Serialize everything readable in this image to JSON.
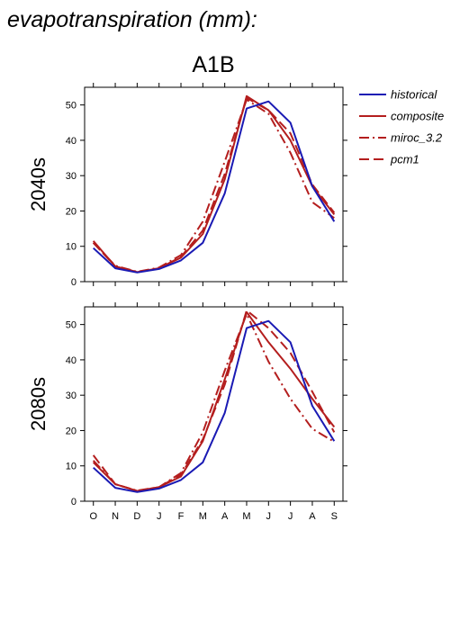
{
  "title": "evapotranspiration (mm):",
  "subtitle": "A1B",
  "colors": {
    "historical": "#1a1ab4",
    "composite": "#b41e1e",
    "miroc_3.2": "#b41e1e",
    "pcm1": "#b41e1e"
  },
  "legend": [
    {
      "name": "historical",
      "style": "solid",
      "color": "#1a1ab4"
    },
    {
      "name": "composite",
      "style": "solid",
      "color": "#b41e1e"
    },
    {
      "name": "miroc_3.2",
      "style": "dashdot",
      "color": "#b41e1e"
    },
    {
      "name": "pcm1",
      "style": "dash",
      "color": "#b41e1e"
    }
  ],
  "chart_data": [
    {
      "type": "line",
      "panel_label": "2040s",
      "categories": [
        "O",
        "N",
        "D",
        "J",
        "F",
        "M",
        "A",
        "M",
        "J",
        "J",
        "A",
        "S"
      ],
      "ylim": [
        0,
        55
      ],
      "yticks": [
        0,
        10,
        20,
        30,
        40,
        50
      ],
      "series": [
        {
          "name": "historical",
          "style": "solid",
          "values": [
            9.5,
            3.8,
            2.6,
            3.6,
            6.0,
            11.0,
            25.0,
            49.0,
            51.0,
            45.0,
            27.0,
            17.0
          ]
        },
        {
          "name": "composite",
          "style": "solid",
          "values": [
            11.5,
            4.3,
            2.7,
            3.8,
            6.8,
            13.5,
            29.0,
            52.5,
            48.5,
            40.0,
            27.0,
            19.0
          ]
        },
        {
          "name": "miroc_3.2",
          "style": "dashdot",
          "values": [
            11.0,
            4.5,
            2.8,
            4.0,
            7.5,
            17.0,
            34.0,
            51.5,
            47.5,
            36.5,
            22.5,
            18.0
          ]
        },
        {
          "name": "pcm1",
          "style": "dash",
          "values": [
            11.0,
            4.3,
            2.7,
            3.8,
            7.0,
            14.5,
            30.5,
            52.0,
            48.5,
            42.0,
            27.5,
            19.5
          ]
        }
      ]
    },
    {
      "type": "line",
      "panel_label": "2080s",
      "categories": [
        "O",
        "N",
        "D",
        "J",
        "F",
        "M",
        "A",
        "M",
        "J",
        "J",
        "A",
        "S"
      ],
      "ylim": [
        0,
        55
      ],
      "yticks": [
        0,
        10,
        20,
        30,
        40,
        50
      ],
      "series": [
        {
          "name": "historical",
          "style": "solid",
          "values": [
            9.5,
            3.8,
            2.6,
            3.6,
            6.0,
            11.0,
            25.0,
            49.0,
            51.0,
            45.0,
            27.0,
            17.0
          ]
        },
        {
          "name": "composite",
          "style": "solid",
          "values": [
            11.0,
            4.8,
            2.9,
            4.0,
            7.0,
            17.0,
            34.5,
            53.5,
            45.0,
            37.5,
            29.0,
            21.0
          ]
        },
        {
          "name": "miroc_3.2",
          "style": "dashdot",
          "values": [
            11.5,
            4.8,
            3.0,
            4.0,
            8.0,
            19.5,
            37.0,
            53.0,
            39.5,
            29.0,
            20.5,
            16.8
          ]
        },
        {
          "name": "pcm1",
          "style": "dash",
          "values": [
            13.0,
            4.8,
            2.9,
            4.0,
            7.5,
            17.5,
            33.0,
            54.0,
            49.0,
            42.0,
            31.0,
            19.5
          ]
        }
      ]
    }
  ]
}
